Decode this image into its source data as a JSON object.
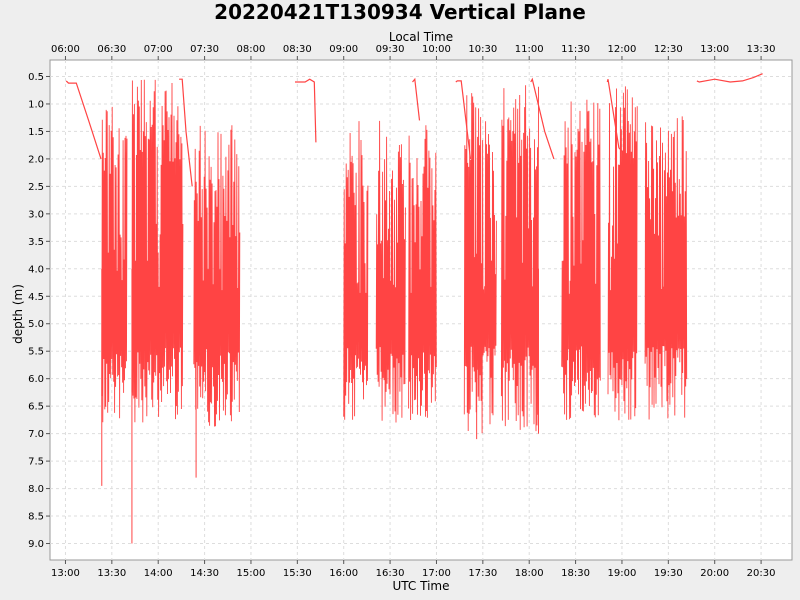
{
  "chart_data": {
    "type": "line",
    "title": "20220421T130934 Vertical Plane",
    "xlabel": "UTC Time",
    "x2label": "Local Time",
    "ylabel": "depth (m)",
    "x_unit": "minutes since 00:00 UTC",
    "xlim": [
      770,
      1250
    ],
    "ylim": [
      9.3,
      0.2
    ],
    "y_inverted": true,
    "grid": true,
    "line_color": "#ff4444",
    "plot_background": "#ffffff",
    "x_ticks": [
      {
        "value": 780,
        "label": "13:00"
      },
      {
        "value": 810,
        "label": "13:30"
      },
      {
        "value": 840,
        "label": "14:00"
      },
      {
        "value": 870,
        "label": "14:30"
      },
      {
        "value": 900,
        "label": "15:00"
      },
      {
        "value": 930,
        "label": "15:30"
      },
      {
        "value": 960,
        "label": "16:00"
      },
      {
        "value": 990,
        "label": "16:30"
      },
      {
        "value": 1020,
        "label": "17:00"
      },
      {
        "value": 1050,
        "label": "17:30"
      },
      {
        "value": 1080,
        "label": "18:00"
      },
      {
        "value": 1110,
        "label": "18:30"
      },
      {
        "value": 1140,
        "label": "19:00"
      },
      {
        "value": 1170,
        "label": "19:30"
      },
      {
        "value": 1200,
        "label": "20:00"
      },
      {
        "value": 1230,
        "label": "20:30"
      }
    ],
    "x2_ticks": [
      {
        "value": 780,
        "label": "06:00"
      },
      {
        "value": 810,
        "label": "06:30"
      },
      {
        "value": 840,
        "label": "07:00"
      },
      {
        "value": 870,
        "label": "07:30"
      },
      {
        "value": 900,
        "label": "08:00"
      },
      {
        "value": 930,
        "label": "08:30"
      },
      {
        "value": 960,
        "label": "09:00"
      },
      {
        "value": 990,
        "label": "09:30"
      },
      {
        "value": 1020,
        "label": "10:00"
      },
      {
        "value": 1050,
        "label": "10:30"
      },
      {
        "value": 1080,
        "label": "11:00"
      },
      {
        "value": 1110,
        "label": "11:30"
      },
      {
        "value": 1140,
        "label": "12:00"
      },
      {
        "value": 1170,
        "label": "12:30"
      },
      {
        "value": 1200,
        "label": "13:00"
      },
      {
        "value": 1230,
        "label": "13:30"
      }
    ],
    "y_ticks": [
      "0.5",
      "1.0",
      "1.5",
      "2.0",
      "2.5",
      "3.0",
      "3.5",
      "4.0",
      "4.5",
      "5.0",
      "5.5",
      "6.0",
      "6.5",
      "7.0",
      "7.5",
      "8.0",
      "8.5",
      "9.0"
    ],
    "series": [
      {
        "points": [
          [
            785,
            0.58
          ],
          [
            787,
            0.62
          ],
          [
            793,
            0.62
          ],
          [
            797,
            1.2
          ],
          [
            801,
            1.8
          ],
          [
            803,
            2.0
          ],
          [
            803.5,
            7.95
          ],
          [
            804,
            4.2
          ],
          [
            816,
            2.0
          ],
          [
            820,
            0.85
          ],
          [
            822,
            0.52
          ],
          [
            823,
            9.0
          ],
          [
            824,
            4.0
          ],
          [
            845,
            1.0
          ],
          [
            847,
            4.0
          ],
          [
            858,
            0.55
          ],
          [
            860,
            0.55
          ],
          [
            863,
            2.5
          ],
          [
            864,
            7.8
          ],
          [
            865,
            3.5
          ],
          [
            885,
            2.0
          ],
          [
            887,
            4.0
          ],
          [
            898,
            0.55
          ],
          [
            905,
            0.6
          ],
          [
            915,
            0.55
          ],
          [
            922,
            0.6
          ],
          [
            929,
            2.0
          ],
          [
            931,
            1.5
          ],
          [
            934,
            2.8
          ],
          [
            937,
            6.8
          ],
          [
            942,
            2.5
          ],
          [
            950,
            1.9
          ],
          [
            960,
            0.6
          ],
          [
            970,
            1.0
          ],
          [
            978,
            3.5
          ],
          [
            990,
            1.0
          ],
          [
            995,
            3.0
          ],
          [
            1000,
            1.8
          ],
          [
            1010,
            2.2
          ],
          [
            1015,
            0.6
          ],
          [
            1025,
            0.55
          ],
          [
            1030,
            0.6
          ],
          [
            1043,
            2.2
          ],
          [
            1046,
            7.1
          ],
          [
            1050,
            1.9
          ]
        ],
        "note": "dense oscillating dive profile"
      }
    ],
    "dive_segments": [
      {
        "start": 803.5,
        "end": 820.0,
        "min_depth": 0.8,
        "max_depth": 6.8
      },
      {
        "start": 823.0,
        "end": 856.0,
        "min_depth": 0.55,
        "max_depth": 6.8
      },
      {
        "start": 863.0,
        "end": 893.0,
        "min_depth": 1.3,
        "max_depth": 6.9
      },
      {
        "start": 960.0,
        "end": 976.0,
        "min_depth": 1.3,
        "max_depth": 6.8
      },
      {
        "start": 981.0,
        "end": 1000.0,
        "min_depth": 1.3,
        "max_depth": 6.8
      },
      {
        "start": 1002.0,
        "end": 1020.0,
        "min_depth": 1.3,
        "max_depth": 6.8
      },
      {
        "start": 1038.0,
        "end": 1059.0,
        "min_depth": 0.8,
        "max_depth": 7.1
      },
      {
        "start": 1062.0,
        "end": 1086.0,
        "min_depth": 0.6,
        "max_depth": 7.0
      },
      {
        "start": 1101.0,
        "end": 1126.0,
        "min_depth": 0.8,
        "max_depth": 6.8
      },
      {
        "start": 1131.0,
        "end": 1150.0,
        "min_depth": 0.6,
        "max_depth": 6.8
      },
      {
        "start": 1155.0,
        "end": 1182.0,
        "min_depth": 1.2,
        "max_depth": 6.8
      }
    ],
    "surface_segments": [
      {
        "points": [
          [
            780.5,
            0.58
          ],
          [
            782,
            0.62
          ],
          [
            787,
            0.62
          ],
          [
            795,
            1.3
          ],
          [
            803,
            2.0
          ]
        ]
      },
      {
        "points": [
          [
            853.5,
            0.55
          ],
          [
            855.5,
            0.55
          ],
          [
            858,
            1.5
          ],
          [
            862,
            2.5
          ]
        ]
      },
      {
        "points": [
          [
            928.5,
            0.6
          ],
          [
            935,
            0.6
          ],
          [
            938,
            0.55
          ],
          [
            941,
            0.6
          ],
          [
            942,
            1.7
          ]
        ]
      },
      {
        "points": [
          [
            1004.5,
            0.6
          ],
          [
            1006,
            0.55
          ],
          [
            1009,
            1.3
          ]
        ]
      },
      {
        "points": [
          [
            1032.5,
            0.6
          ],
          [
            1033.5,
            0.58
          ],
          [
            1036,
            0.58
          ],
          [
            1042,
            2.0
          ]
        ]
      },
      {
        "points": [
          [
            1081,
            0.6
          ],
          [
            1082,
            0.55
          ],
          [
            1090,
            1.5
          ],
          [
            1096,
            2.0
          ]
        ]
      },
      {
        "points": [
          [
            1130.5,
            0.6
          ],
          [
            1131,
            0.55
          ],
          [
            1138,
            1.8
          ],
          [
            1145,
            2.0
          ]
        ]
      },
      {
        "points": [
          [
            1188.5,
            0.58
          ],
          [
            1190,
            0.6
          ],
          [
            1200,
            0.55
          ],
          [
            1210,
            0.6
          ],
          [
            1218,
            0.58
          ],
          [
            1225,
            0.52
          ],
          [
            1231,
            0.45
          ]
        ]
      }
    ]
  }
}
